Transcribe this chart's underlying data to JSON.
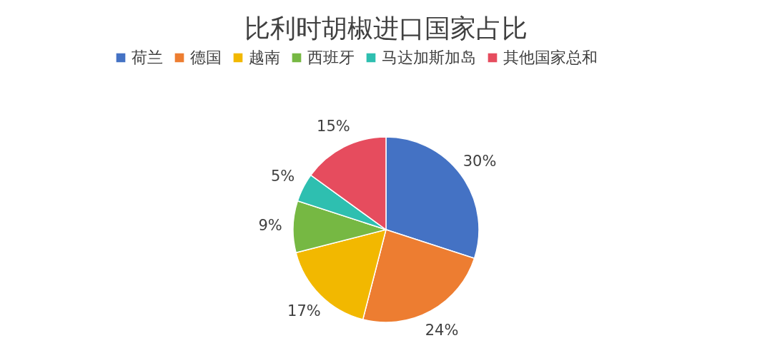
{
  "chart_data": {
    "type": "pie",
    "title": "比利时胡椒进口国家占比",
    "categories": [
      "荷兰",
      "德国",
      "越南",
      "西班牙",
      "马达加斯加岛",
      "其他国家总和"
    ],
    "values": [
      30,
      24,
      17,
      9,
      5,
      15
    ],
    "value_labels": [
      "30%",
      "24%",
      "17%",
      "9%",
      "5%",
      "15%"
    ],
    "colors": [
      "#4472c4",
      "#ed7d31",
      "#f2b800",
      "#76b843",
      "#2ebfb0",
      "#e64c5e"
    ],
    "legend": "top"
  }
}
